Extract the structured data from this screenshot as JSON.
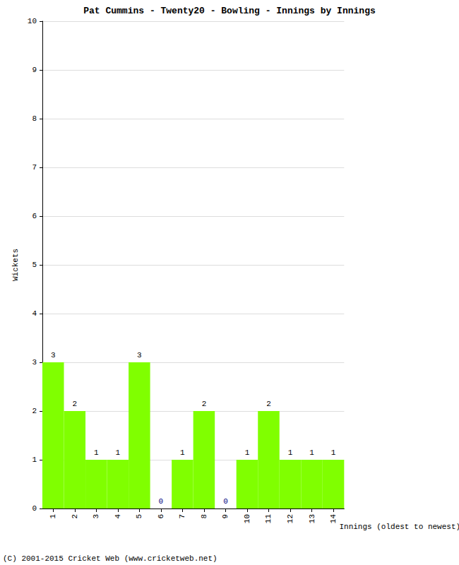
{
  "chart_data": {
    "type": "bar",
    "title": "Pat Cummins - Twenty20 - Bowling - Innings by Innings",
    "x_label": "Innings (oldest to newest)",
    "y_label": "Wickets",
    "categories": [
      "1",
      "2",
      "3",
      "4",
      "5",
      "6",
      "7",
      "8",
      "9",
      "10",
      "11",
      "12",
      "13",
      "14"
    ],
    "values": [
      3,
      2,
      1,
      1,
      3,
      0,
      1,
      2,
      0,
      1,
      2,
      1,
      1,
      1
    ],
    "color": "#80ff00",
    "ylim": [
      0,
      10
    ],
    "yticks": [
      0,
      1,
      2,
      3,
      4,
      5,
      6,
      7,
      8,
      9,
      10
    ],
    "grid": true,
    "data_labels": true,
    "annotations": [
      "(C) 2001-2015 Cricket Web (www.cricketweb.net)"
    ]
  }
}
